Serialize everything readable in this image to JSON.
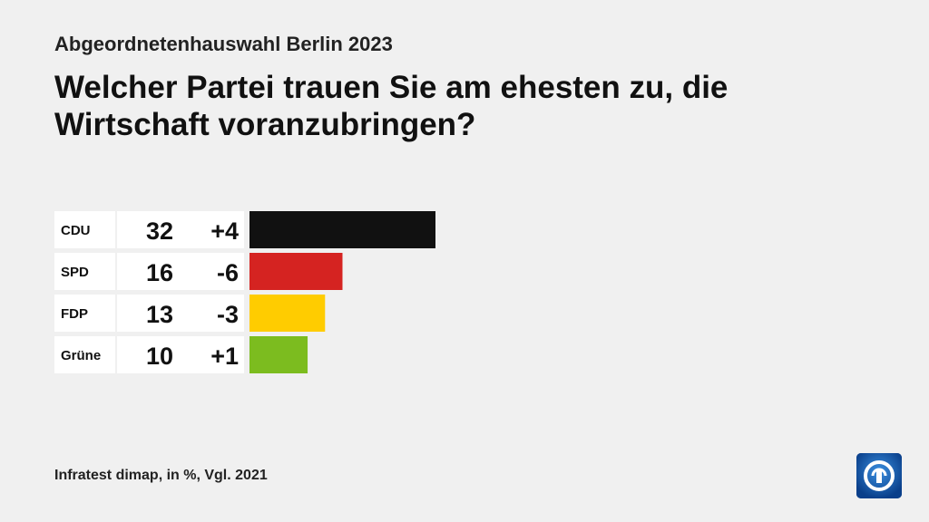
{
  "header": {
    "subtitle": "Abgeordnetenhauswahl Berlin 2023",
    "title": "Welcher Partei trauen Sie am ehesten zu, die Wirtschaft voranzubringen?"
  },
  "footer": {
    "source": "Infratest dimap, in %, Vgl. 2021"
  },
  "logo": {
    "icon": "ard-logo-icon"
  },
  "chart_data": {
    "type": "bar",
    "orientation": "horizontal",
    "categories": [
      "CDU",
      "SPD",
      "FDP",
      "Grüne"
    ],
    "values": [
      32,
      16,
      13,
      10
    ],
    "changes": [
      "+4",
      "-6",
      "-3",
      "+1"
    ],
    "colors": [
      "#111111",
      "#d52321",
      "#ffcc00",
      "#7cbc1f"
    ],
    "xlim": [
      0,
      32
    ]
  }
}
